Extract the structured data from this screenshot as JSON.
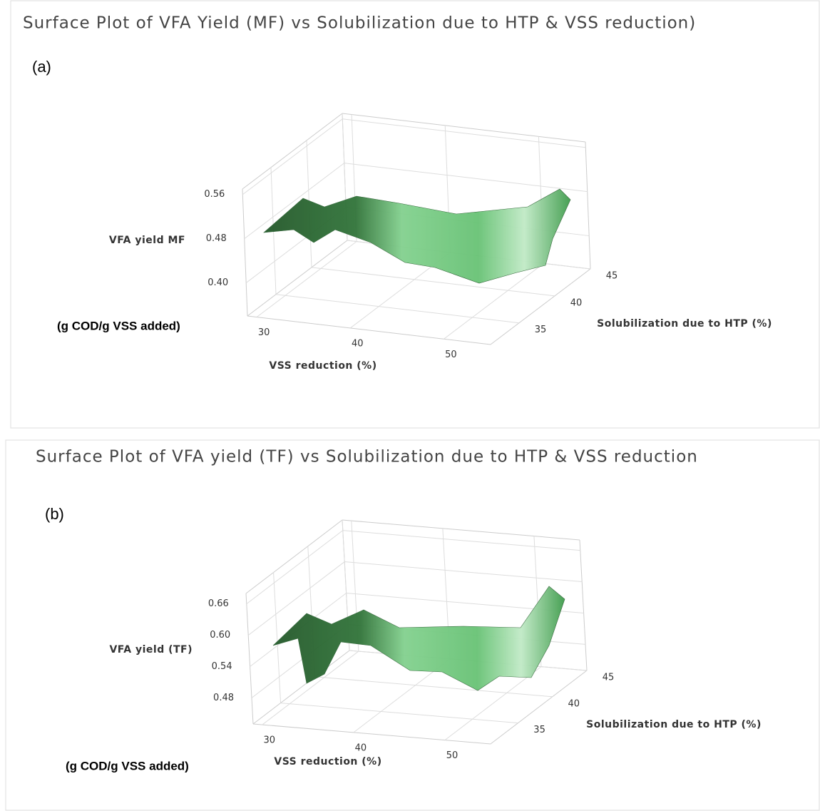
{
  "chart_data": [
    {
      "type": "surface",
      "title": "Surface Plot of VFA Yield (MF) vs Solubilization due to HTP & VSS reduction)",
      "panel": "(a)",
      "zlabel": "VFA yield MF",
      "zunit": "(g COD/g VSS added)",
      "xlabel": "VSS reduction (%)",
      "ylabel": "Solubilization due to HTP (%)",
      "xlim": [
        29,
        55
      ],
      "xticks": [
        30,
        40,
        50
      ],
      "ylim": [
        31,
        45
      ],
      "yticks": [
        35,
        40,
        45
      ],
      "zlim": [
        0.34,
        0.57
      ],
      "zticks": [
        {
          "value": 0.4,
          "label": "0.40"
        },
        0.48,
        0.56
      ],
      "color": "#4caf5a"
    },
    {
      "type": "surface",
      "title": "Surface Plot of VFA yield (TF) vs Solubilization due to HTP & VSS reduction",
      "panel": "(b)",
      "zlabel": "VFA yield (TF)",
      "zunit": "(g COD/g VSS added)",
      "xlabel": "VSS reduction (%)",
      "ylabel": "Solubilization due to HTP (%)",
      "xlim": [
        29,
        55
      ],
      "xticks": [
        30,
        40,
        50
      ],
      "ylim": [
        31,
        45
      ],
      "yticks": [
        35,
        40,
        45
      ],
      "zlim": [
        0.43,
        0.68
      ],
      "zticks": [
        0.48,
        0.54,
        {
          "value": 0.6,
          "label": "0.60"
        },
        0.66
      ],
      "color": "#4caf5a"
    }
  ]
}
